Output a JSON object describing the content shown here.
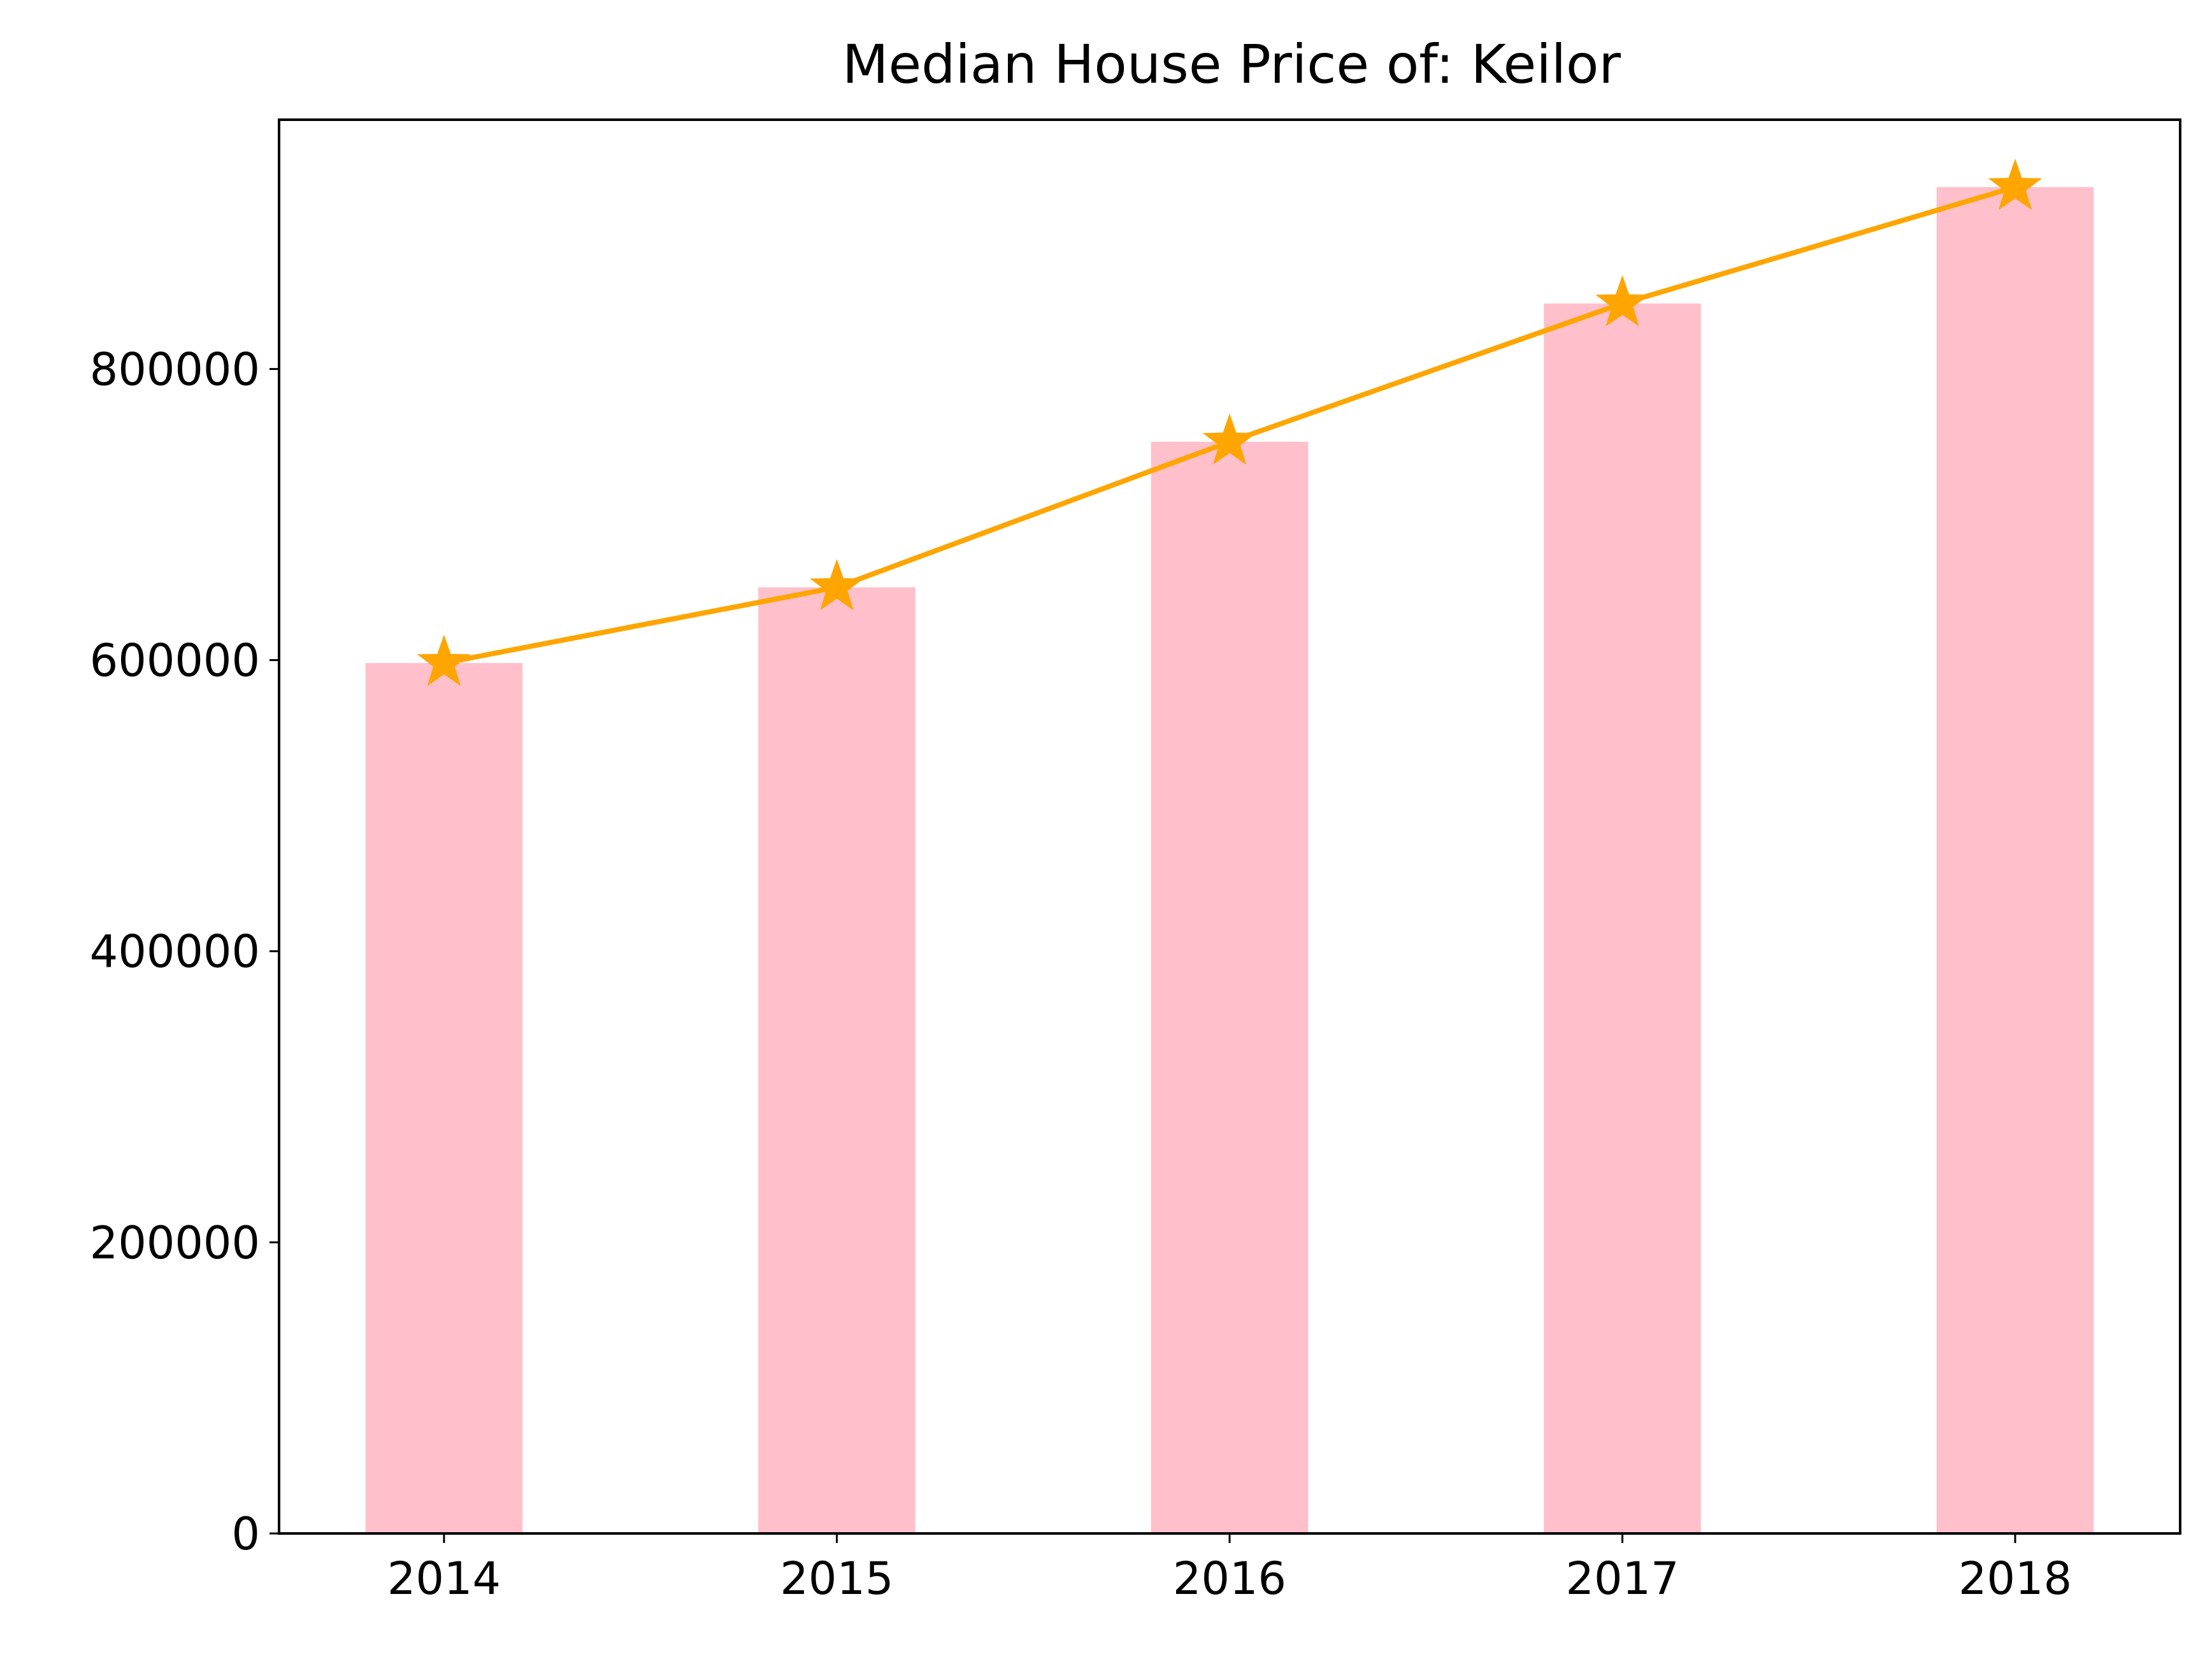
{
  "chart_data": {
    "type": "bar",
    "title": "Median House Price of: Keilor",
    "xlabel": "",
    "ylabel": "",
    "categories": [
      "2014",
      "2015",
      "2016",
      "2017",
      "2018"
    ],
    "series": [
      {
        "type": "bar",
        "values": [
          598000,
          650000,
          750000,
          845000,
          925000
        ],
        "color": "#ffc0cb"
      },
      {
        "type": "line",
        "marker": "star",
        "values": [
          598000,
          650000,
          750000,
          845000,
          925000
        ],
        "color": "#ffa500"
      }
    ],
    "yticks": [
      0,
      200000,
      400000,
      600000,
      800000
    ],
    "ytick_labels": [
      "0",
      "200000",
      "400000",
      "600000",
      "800000"
    ],
    "ylim": [
      0,
      971250
    ],
    "xlim": [
      -0.42,
      4.42
    ],
    "grid": false,
    "legend": false
  }
}
